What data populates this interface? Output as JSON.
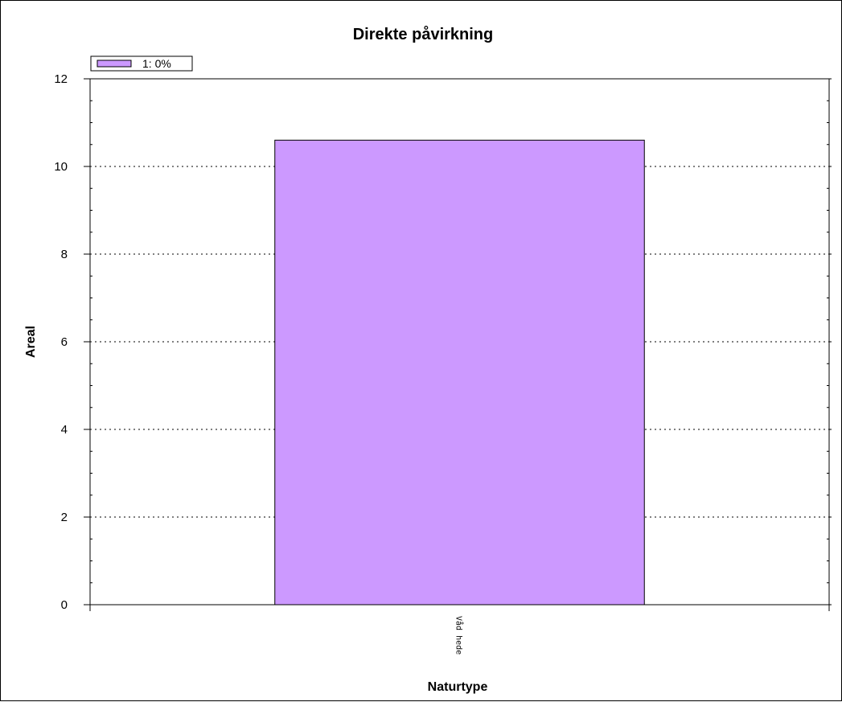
{
  "chart_data": {
    "type": "bar",
    "title": "Direkte påvirkning",
    "xlabel": "Naturtype",
    "ylabel": "Areal",
    "categories": [
      "Våd hede"
    ],
    "series": [
      {
        "name": "1: 0%",
        "values": [
          10.6
        ],
        "color": "#cc99ff"
      }
    ],
    "ylim": [
      0,
      12
    ],
    "yticks": [
      "0",
      "2",
      "4",
      "6",
      "8",
      "10",
      "12"
    ],
    "grid": "dotted horizontal",
    "legend_position": "top-left"
  }
}
